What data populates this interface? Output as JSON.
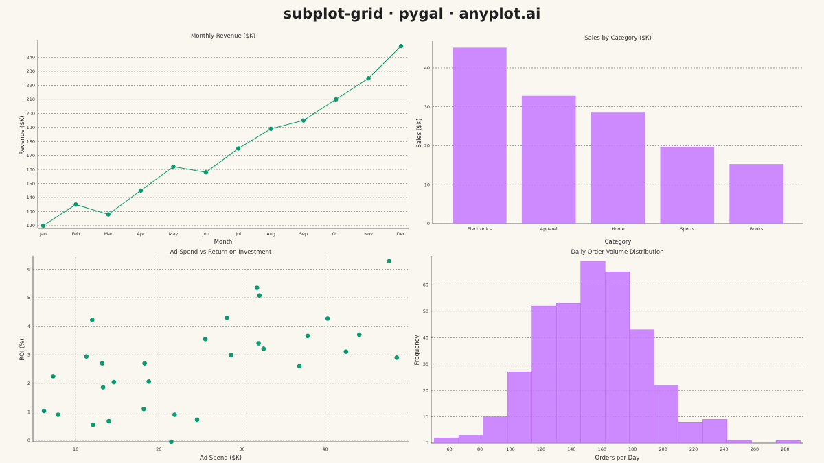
{
  "title": "subplot-grid · pygal · anyplot.ai",
  "colors": {
    "background": "#faf7f0",
    "green": "#0a9a6e",
    "purple": "#c77dff",
    "grid": "#666666",
    "axis": "#444444"
  },
  "chart_data": [
    {
      "id": "revenue",
      "type": "line",
      "title": "Monthly Revenue ($K)",
      "xlabel": "Month",
      "ylabel": "Revenue ($K)",
      "categories": [
        "Jan",
        "Feb",
        "Mar",
        "Apr",
        "May",
        "Jun",
        "Jul",
        "Aug",
        "Sep",
        "Oct",
        "Nov",
        "Dec"
      ],
      "values": [
        120,
        135,
        128,
        145,
        162,
        158,
        175,
        189,
        195,
        210,
        225,
        248
      ],
      "yticks": [
        120,
        130,
        140,
        150,
        160,
        170,
        180,
        190,
        200,
        210,
        220,
        230,
        240
      ],
      "ylim": [
        118,
        251
      ],
      "grid": "horizontal"
    },
    {
      "id": "sales",
      "type": "bar",
      "title": "Sales by Category ($K)",
      "xlabel": "Category",
      "ylabel": "Sales ($K)",
      "categories": [
        "Electronics",
        "Apparel",
        "Home",
        "Sports",
        "Books"
      ],
      "values": [
        45.2,
        32.8,
        28.5,
        19.7,
        15.3
      ],
      "yticks": [
        0,
        10,
        20,
        30,
        40
      ],
      "ylim": [
        0,
        46.5
      ],
      "grid": "horizontal"
    },
    {
      "id": "adspend",
      "type": "scatter",
      "title": "Ad Spend vs Return on Investment",
      "xlabel": "Ad Spend ($K)",
      "ylabel": "ROI (%)",
      "points": [
        [
          6.2,
          1.03
        ],
        [
          7.3,
          2.25
        ],
        [
          7.9,
          0.9
        ],
        [
          11.3,
          2.94
        ],
        [
          12.0,
          4.22
        ],
        [
          12.1,
          0.55
        ],
        [
          13.2,
          2.7
        ],
        [
          13.3,
          1.86
        ],
        [
          14.0,
          0.67
        ],
        [
          14.6,
          2.04
        ],
        [
          18.2,
          1.1
        ],
        [
          18.3,
          2.7
        ],
        [
          18.8,
          2.06
        ],
        [
          21.5,
          -0.05
        ],
        [
          21.9,
          0.9
        ],
        [
          24.6,
          0.72
        ],
        [
          25.6,
          3.55
        ],
        [
          28.2,
          4.3
        ],
        [
          28.7,
          2.99
        ],
        [
          31.8,
          5.35
        ],
        [
          32.0,
          3.4
        ],
        [
          32.1,
          5.08
        ],
        [
          32.6,
          3.21
        ],
        [
          36.9,
          2.6
        ],
        [
          37.9,
          3.66
        ],
        [
          40.3,
          4.27
        ],
        [
          42.5,
          3.11
        ],
        [
          44.1,
          3.7
        ],
        [
          47.7,
          6.28
        ],
        [
          48.6,
          2.9
        ]
      ],
      "xticks": [
        10,
        20,
        30,
        40
      ],
      "yticks": [
        0,
        1,
        2,
        3,
        4,
        5,
        6
      ],
      "xlim": [
        5.7,
        49.2
      ],
      "ylim": [
        -0.05,
        6.3
      ],
      "grid": "both"
    },
    {
      "id": "orders",
      "type": "bar",
      "title": "Daily Order Volume Distribution",
      "xlabel": "Orders per Day",
      "ylabel": "Frequency",
      "bins": [
        [
          50,
          66,
          2
        ],
        [
          66,
          82,
          3
        ],
        [
          82,
          98,
          10
        ],
        [
          98,
          114,
          27
        ],
        [
          114,
          130,
          52
        ],
        [
          130,
          146,
          53
        ],
        [
          146,
          162,
          69
        ],
        [
          162,
          178,
          65
        ],
        [
          178,
          194,
          43
        ],
        [
          194,
          210,
          22
        ],
        [
          210,
          226,
          8
        ],
        [
          226,
          242,
          9
        ],
        [
          242,
          258,
          1
        ],
        [
          258,
          274,
          0
        ],
        [
          274,
          290,
          1
        ]
      ],
      "xticks": [
        60,
        80,
        100,
        120,
        140,
        160,
        180,
        200,
        220,
        240,
        260,
        280
      ],
      "yticks": [
        0,
        10,
        20,
        30,
        40,
        50,
        60
      ],
      "xlim": [
        48,
        292
      ],
      "ylim": [
        0,
        70
      ],
      "grid": "horizontal"
    }
  ]
}
